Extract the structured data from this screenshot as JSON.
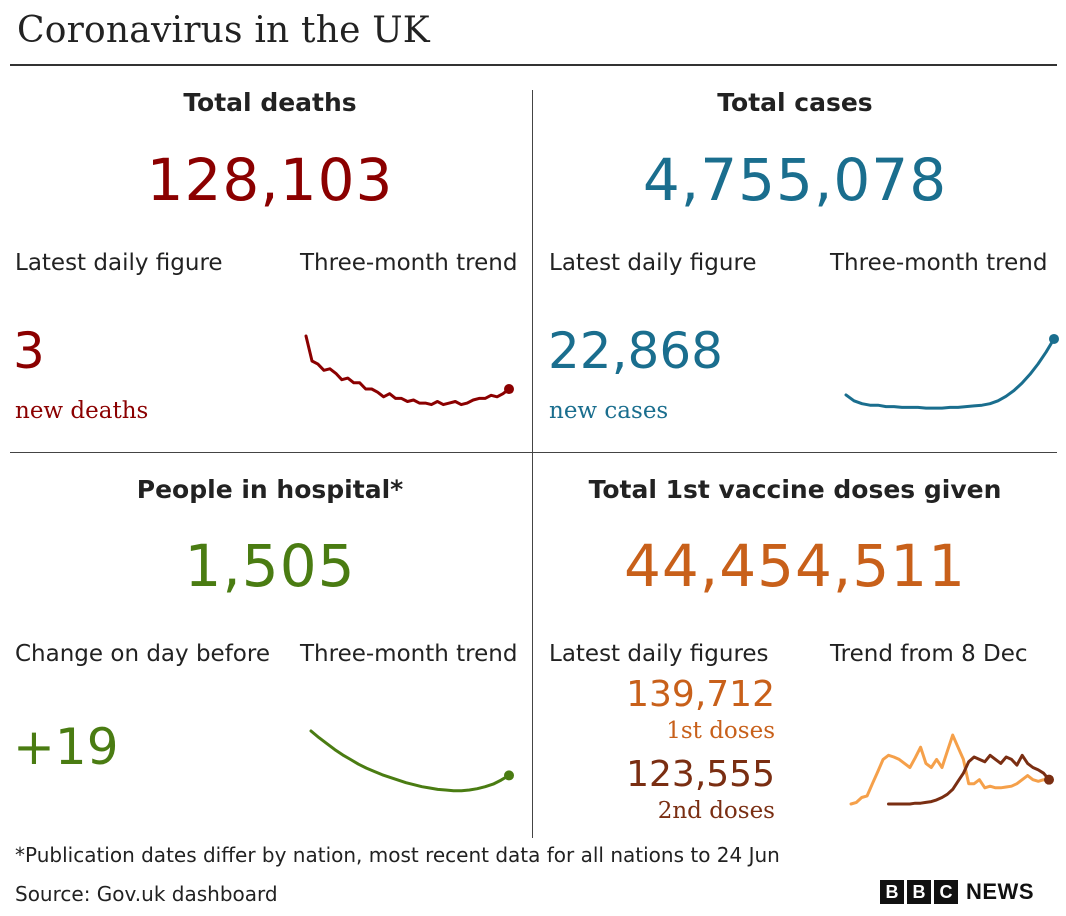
{
  "title": "Coronavirus in the UK",
  "colors": {
    "deaths": "#8b0000",
    "cases": "#1a6e8e",
    "hospital": "#4a7c12",
    "vaccine": "#c8601a",
    "first_dose_line": "#f5a04a",
    "second_dose": "#7a2e12"
  },
  "deaths": {
    "heading": "Total deaths",
    "total": "128,103",
    "latest_label": "Latest daily figure",
    "trend_label": "Three-month trend",
    "daily_value": "3",
    "daily_unit": "new deaths"
  },
  "cases": {
    "heading": "Total cases",
    "total": "4,755,078",
    "latest_label": "Latest daily figure",
    "trend_label": "Three-month trend",
    "daily_value": "22,868",
    "daily_unit": "new cases"
  },
  "hospital": {
    "heading": "People in hospital*",
    "total": "1,505",
    "latest_label": "Change on day before",
    "trend_label": "Three-month trend",
    "daily_value": "+19"
  },
  "vaccine": {
    "heading": "Total 1st vaccine doses given",
    "total": "44,454,511",
    "latest_label": "Latest daily figures",
    "trend_label": "Trend from 8 Dec",
    "first_value": "139,712",
    "first_unit": "1st doses",
    "second_value": "123,555",
    "second_unit": "2nd doses"
  },
  "footnote": "*Publication dates differ by nation, most recent data for all nations to 24 Jun",
  "source": "Source: Gov.uk dashboard",
  "brand": {
    "letters": [
      "B",
      "B",
      "C"
    ],
    "news": "NEWS"
  },
  "chart_data": [
    {
      "type": "line",
      "series": [
        {
          "values": [
            100,
            84,
            82,
            78,
            79,
            76,
            72,
            73,
            70,
            70,
            66,
            66,
            64,
            61,
            63,
            60,
            60,
            58,
            59,
            57,
            57,
            56,
            58,
            56,
            57,
            58,
            56,
            57,
            59,
            60,
            60,
            62,
            61,
            63,
            66
          ]
        }
      ]
    },
    {
      "type": "line",
      "series": [
        {
          "values": [
            18,
            14,
            12,
            11,
            11,
            10,
            10,
            9.5,
            9.5,
            9.5,
            9,
            9,
            9,
            9.5,
            9.5,
            10,
            10.5,
            11,
            12,
            14,
            17,
            21,
            26,
            32,
            39,
            47,
            56
          ]
        }
      ]
    },
    {
      "type": "line",
      "series": [
        {
          "values": [
            100,
            90,
            81,
            72,
            64,
            57,
            50,
            44,
            39,
            34,
            30,
            26,
            22,
            19,
            16,
            14,
            12,
            11,
            10,
            10,
            11,
            13,
            16,
            20,
            26,
            33
          ]
        }
      ]
    },
    {
      "type": "line",
      "series": [
        {
          "values": [
            0,
            2,
            8,
            10,
            25,
            40,
            55,
            60,
            58,
            55,
            50,
            45,
            57,
            70,
            50,
            45,
            55,
            45,
            65,
            85,
            70,
            55,
            25,
            25,
            30,
            20,
            22,
            20,
            20,
            21,
            22,
            25,
            30,
            35,
            30,
            28,
            30,
            28
          ]
        },
        {
          "values": [
            null,
            null,
            null,
            null,
            null,
            null,
            null,
            0,
            0,
            0,
            0,
            0,
            1,
            1,
            2,
            3,
            5,
            8,
            12,
            18,
            28,
            38,
            52,
            58,
            55,
            52,
            60,
            55,
            50,
            58,
            55,
            48,
            60,
            50,
            45,
            42,
            38,
            30
          ]
        }
      ]
    }
  ]
}
